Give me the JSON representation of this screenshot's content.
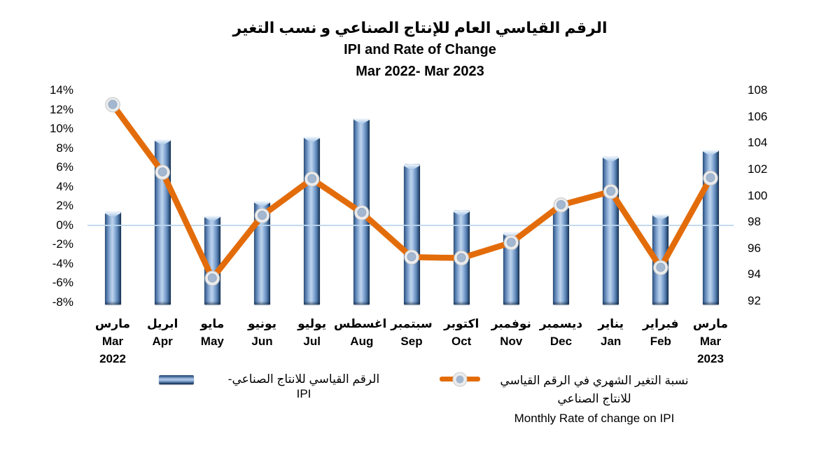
{
  "title": {
    "line_ar": "الرقم القياسي العام للإنتاج الصناعي و نسب التغير",
    "line_en": "IPI and Rate of Change",
    "line_period": "Mar 2022- Mar 2023"
  },
  "chart_data": {
    "type": "combo-bar-line",
    "categories": [
      {
        "ar": "مارس",
        "en": "Mar",
        "year": "2022"
      },
      {
        "ar": "ابريل",
        "en": "Apr",
        "year": ""
      },
      {
        "ar": "مايو",
        "en": "May",
        "year": ""
      },
      {
        "ar": "يونيو",
        "en": "Jun",
        "year": ""
      },
      {
        "ar": "يوليو",
        "en": "Jul",
        "year": ""
      },
      {
        "ar": "اغسطس",
        "en": "Aug",
        "year": ""
      },
      {
        "ar": "سبتمبر",
        "en": "Sep",
        "year": ""
      },
      {
        "ar": "اكتوبر",
        "en": "Oct",
        "year": ""
      },
      {
        "ar": "نوفمبر",
        "en": "Nov",
        "year": ""
      },
      {
        "ar": "ديسمبر",
        "en": "Dec",
        "year": ""
      },
      {
        "ar": "يناير",
        "en": "Jan",
        "year": ""
      },
      {
        "ar": "فبراير",
        "en": "Feb",
        "year": ""
      },
      {
        "ar": "مارس",
        "en": "Mar",
        "year": "2023"
      }
    ],
    "series": [
      {
        "name": "الرقم القياسي للانتاج الصناعي- IPI",
        "type": "bar",
        "axis": "right",
        "color": "#7da2cd",
        "values": [
          98.8,
          104.3,
          98.5,
          99.6,
          104.5,
          105.9,
          102.4,
          98.9,
          97.2,
          99.2,
          103.0,
          98.6,
          103.5
        ]
      },
      {
        "name_ar_line1": "نسبة التغير الشهري في الرقم القياسي",
        "name_ar_line2": "للانتاج الصناعي",
        "name_en": "Monthly Rate of change on IPI",
        "type": "line",
        "axis": "left",
        "color": "#e36c0a",
        "values_pct": [
          12.5,
          5.5,
          -5.5,
          1.0,
          4.8,
          1.3,
          -3.3,
          -3.4,
          -1.8,
          2.1,
          3.5,
          -4.4,
          4.9
        ]
      }
    ],
    "left_axis": {
      "unit": "%",
      "min": -8,
      "max": 14,
      "step": 2,
      "tick_labels": [
        "14%",
        "12%",
        "10%",
        "8%",
        "6%",
        "4%",
        "2%",
        "0%",
        "-2%",
        "-4%",
        "-6%",
        "-8%"
      ]
    },
    "right_axis": {
      "min": 92,
      "max": 108,
      "step": 2,
      "tick_labels": [
        "108",
        "106",
        "104",
        "102",
        "100",
        "98",
        "96",
        "94",
        "92"
      ]
    },
    "gridlines": {
      "zero_line_left_value": 0
    },
    "legend_position": "bottom",
    "colors": {
      "bar_light": "#b5cdea",
      "bar_mid": "#7fa3d0",
      "bar_dark": "#1f3f66",
      "line": "#e36c0a",
      "marker_fill": "#a4b7d0",
      "marker_ring": "#ececec",
      "gridline": "#bdd7ee",
      "title_text": "#000000"
    }
  }
}
